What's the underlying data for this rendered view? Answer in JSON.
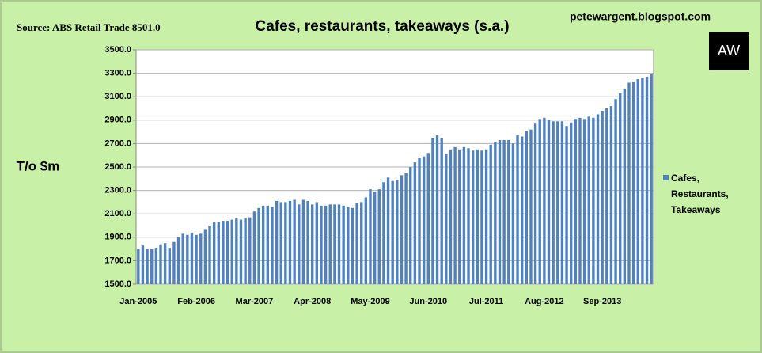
{
  "chart_data": {
    "type": "bar",
    "title": "Cafes, restaurants, takeaways (s.a.)",
    "source": "Source: ABS Retail Trade 8501.0",
    "blog": "petewargent.blogspot.com",
    "logo": "AW",
    "y_label": "T/o $m",
    "categories": [
      "Jan-2005",
      null,
      null,
      null,
      null,
      null,
      null,
      null,
      null,
      null,
      null,
      null,
      null,
      "Feb-2006",
      null,
      null,
      null,
      null,
      null,
      null,
      null,
      null,
      null,
      null,
      null,
      null,
      "Mar-2007",
      null,
      null,
      null,
      null,
      null,
      null,
      null,
      null,
      null,
      null,
      null,
      null,
      "Apr-2008",
      null,
      null,
      null,
      null,
      null,
      null,
      null,
      null,
      null,
      null,
      null,
      null,
      "May-2009",
      null,
      null,
      null,
      null,
      null,
      null,
      null,
      null,
      null,
      null,
      null,
      null,
      "Jun-2010",
      null,
      null,
      null,
      null,
      null,
      null,
      null,
      null,
      null,
      null,
      null,
      null,
      "Jul-2011",
      null,
      null,
      null,
      null,
      null,
      null,
      null,
      null,
      null,
      null,
      null,
      null,
      "Aug-2012",
      null,
      null,
      null,
      null,
      null,
      null,
      null,
      null,
      null,
      null,
      null,
      null,
      "Sep-2013",
      null,
      null,
      null,
      null,
      null,
      null,
      null,
      null,
      null,
      null,
      null
    ],
    "series": [
      {
        "name": "Cafes, Restaurants, Takeaways",
        "color": "#4f81bd",
        "values": [
          1800,
          1830,
          1800,
          1800,
          1810,
          1840,
          1850,
          1810,
          1860,
          1900,
          1930,
          1920,
          1940,
          1920,
          1930,
          1970,
          2000,
          2030,
          2030,
          2040,
          2040,
          2050,
          2060,
          2050,
          2060,
          2070,
          2120,
          2150,
          2170,
          2170,
          2160,
          2210,
          2200,
          2200,
          2210,
          2220,
          2180,
          2220,
          2210,
          2180,
          2200,
          2170,
          2170,
          2180,
          2180,
          2180,
          2170,
          2160,
          2150,
          2190,
          2200,
          2240,
          2310,
          2290,
          2310,
          2370,
          2410,
          2380,
          2390,
          2430,
          2450,
          2500,
          2540,
          2580,
          2590,
          2620,
          2750,
          2770,
          2750,
          2610,
          2650,
          2670,
          2650,
          2670,
          2660,
          2640,
          2650,
          2640,
          2650,
          2690,
          2710,
          2730,
          2730,
          2730,
          2700,
          2770,
          2760,
          2810,
          2820,
          2870,
          2910,
          2920,
          2900,
          2890,
          2890,
          2890,
          2850,
          2880,
          2910,
          2920,
          2910,
          2930,
          2920,
          2950,
          2980,
          3000,
          3020,
          3080,
          3130,
          3170,
          3220,
          3230,
          3250,
          3260,
          3270,
          3290
        ]
      }
    ],
    "ylim": [
      1500,
      3500
    ],
    "yticks": [
      {
        "value": 1500,
        "label": "1500.0"
      },
      {
        "value": 1700,
        "label": "1700.0"
      },
      {
        "value": 1900,
        "label": "1900.0"
      },
      {
        "value": 2100,
        "label": "2100.0"
      },
      {
        "value": 2300,
        "label": "2300.0"
      },
      {
        "value": 2500,
        "label": "2500.0"
      },
      {
        "value": 2700,
        "label": "2700.0"
      },
      {
        "value": 2900,
        "label": "2900.0"
      },
      {
        "value": 3100,
        "label": "3100.0"
      },
      {
        "value": 3300,
        "label": "3300.0"
      },
      {
        "value": 3500,
        "label": "3500.0"
      }
    ],
    "grid": true
  }
}
